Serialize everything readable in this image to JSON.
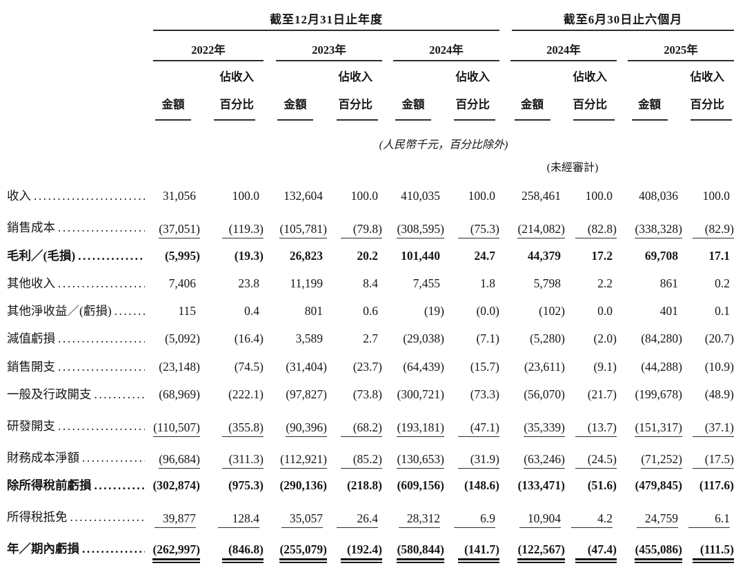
{
  "page": {
    "background_color": "#ffffff",
    "text_color": "#161616"
  },
  "header": {
    "period_groups": [
      {
        "title": "截至12月31日止年度"
      },
      {
        "title": "截至6月30日止六個月"
      }
    ],
    "years": [
      "2022年",
      "2023年",
      "2024年",
      "2024年",
      "2025年"
    ],
    "amount_label": "金額",
    "pct_label_line1": "佔收入",
    "pct_label_line2": "百分比"
  },
  "notes": {
    "units": "(人民幣千元，百分比除外)",
    "unaudited": "(未經審計)"
  },
  "leader_dots": "............................................................",
  "rows": [
    {
      "label": "收入",
      "bold": false,
      "rule_below": "none",
      "values": [
        "31,056",
        "100.0",
        "132,604",
        "100.0",
        "410,035",
        "100.0",
        "258,461",
        "100.0",
        "408,036",
        "100.0"
      ]
    },
    {
      "label": "銷售成本",
      "bold": false,
      "rule_below": "single",
      "values": [
        "(37,051)",
        "(119.3)",
        "(105,781)",
        "(79.8)",
        "(308,595)",
        "(75.3)",
        "(214,082)",
        "(82.8)",
        "(338,328)",
        "(82.9)"
      ]
    },
    {
      "label": "毛利／(毛損)",
      "bold": true,
      "rule_below": "none",
      "values": [
        "(5,995)",
        "(19.3)",
        "26,823",
        "20.2",
        "101,440",
        "24.7",
        "44,379",
        "17.2",
        "69,708",
        "17.1"
      ]
    },
    {
      "label": "其他收入",
      "bold": false,
      "rule_below": "none",
      "values": [
        "7,406",
        "23.8",
        "11,199",
        "8.4",
        "7,455",
        "1.8",
        "5,798",
        "2.2",
        "861",
        "0.2"
      ]
    },
    {
      "label": "其他淨收益／(虧損)",
      "bold": false,
      "rule_below": "none",
      "values": [
        "115",
        "0.4",
        "801",
        "0.6",
        "(19)",
        "(0.0)",
        "(102)",
        "0.0",
        "401",
        "0.1"
      ]
    },
    {
      "label": "減值虧損",
      "bold": false,
      "rule_below": "none",
      "values": [
        "(5,092)",
        "(16.4)",
        "3,589",
        "2.7",
        "(29,038)",
        "(7.1)",
        "(5,280)",
        "(2.0)",
        "(84,280)",
        "(20.7)"
      ]
    },
    {
      "label": "銷售開支",
      "bold": false,
      "rule_below": "none",
      "values": [
        "(23,148)",
        "(74.5)",
        "(31,404)",
        "(23.7)",
        "(64,439)",
        "(15.7)",
        "(23,611)",
        "(9.1)",
        "(44,288)",
        "(10.9)"
      ]
    },
    {
      "label": "一般及行政開支",
      "bold": false,
      "rule_below": "none",
      "values": [
        "(68,969)",
        "(222.1)",
        "(97,827)",
        "(73.8)",
        "(300,721)",
        "(73.3)",
        "(56,070)",
        "(21.7)",
        "(199,678)",
        "(48.9)"
      ]
    },
    {
      "label": "研發開支",
      "bold": false,
      "rule_below": "single",
      "values": [
        "(110,507)",
        "(355.8)",
        "(90,396)",
        "(68.2)",
        "(193,181)",
        "(47.1)",
        "(35,339)",
        "(13.7)",
        "(151,317)",
        "(37.1)"
      ]
    },
    {
      "label": "財務成本淨額",
      "bold": false,
      "rule_below": "single",
      "values": [
        "(96,684)",
        "(311.3)",
        "(112,921)",
        "(85.2)",
        "(130,653)",
        "(31.9)",
        "(63,246)",
        "(24.5)",
        "(71,252)",
        "(17.5)"
      ]
    },
    {
      "label": "除所得稅前虧損",
      "bold": true,
      "rule_below": "none",
      "values": [
        "(302,874)",
        "(975.3)",
        "(290,136)",
        "(218.8)",
        "(609,156)",
        "(148.6)",
        "(133,471)",
        "(51.6)",
        "(479,845)",
        "(117.6)"
      ]
    },
    {
      "label": "所得稅抵免",
      "bold": false,
      "rule_below": "single",
      "values": [
        "39,877",
        "128.4",
        "35,057",
        "26.4",
        "28,312",
        "6.9",
        "10,904",
        "4.2",
        "24,759",
        "6.1"
      ]
    },
    {
      "label": "年／期內虧損",
      "bold": true,
      "rule_below": "double",
      "values": [
        "(262,997)",
        "(846.8)",
        "(255,079)",
        "(192.4)",
        "(580,844)",
        "(141.7)",
        "(122,567)",
        "(47.4)",
        "(455,086)",
        "(111.5)"
      ]
    }
  ]
}
